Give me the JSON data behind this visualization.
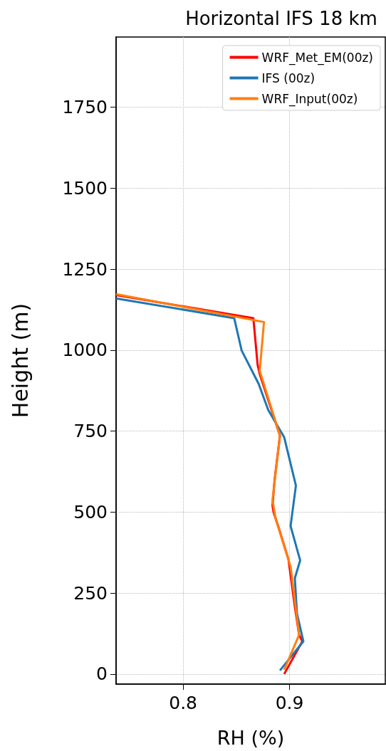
{
  "chart_data": {
    "type": "line",
    "title": "Horizontal IFS 18 km",
    "xlabel": "RH (%)",
    "ylabel": "Height (m)",
    "xlim": [
      0.737,
      0.99
    ],
    "xticks": [
      0.8,
      0.9
    ],
    "ylim": [
      -31,
      1967
    ],
    "yticks": [
      0,
      250,
      500,
      750,
      1000,
      1250,
      1500,
      1750
    ],
    "grid": true,
    "legend": "top right",
    "line_style": "solid",
    "marker": "none",
    "series": [
      {
        "name": "WRF_Met_EM(00z)",
        "color": "#ff0000",
        "x": [
          0.737,
          0.866,
          0.87,
          0.872,
          0.891,
          0.886,
          0.884,
          0.885,
          0.89,
          0.899,
          0.905,
          0.909,
          0.912,
          0.895
        ],
        "values": [
          1170,
          1099,
          955,
          926,
          736,
          600,
          520,
          500,
          450,
          354,
          208,
          121,
          101,
          0
        ]
      },
      {
        "name": "IFS (00z)",
        "color": "#1f77b4",
        "x": [
          0.737,
          0.848,
          0.855,
          0.871,
          0.88,
          0.895,
          0.906,
          0.901,
          0.91,
          0.905,
          0.907,
          0.913,
          0.891
        ],
        "values": [
          1160,
          1099,
          999,
          896,
          815,
          731,
          582,
          457,
          351,
          296,
          187,
          101,
          11
        ]
      },
      {
        "name": "WRF_Input(00z)",
        "color": "#ff7f0e",
        "x": [
          0.737,
          0.876,
          0.872,
          0.891,
          0.884,
          0.887,
          0.901,
          0.909,
          0.895
        ],
        "values": [
          1173,
          1087,
          936,
          736,
          538,
          479,
          332,
          121,
          13
        ]
      }
    ]
  }
}
